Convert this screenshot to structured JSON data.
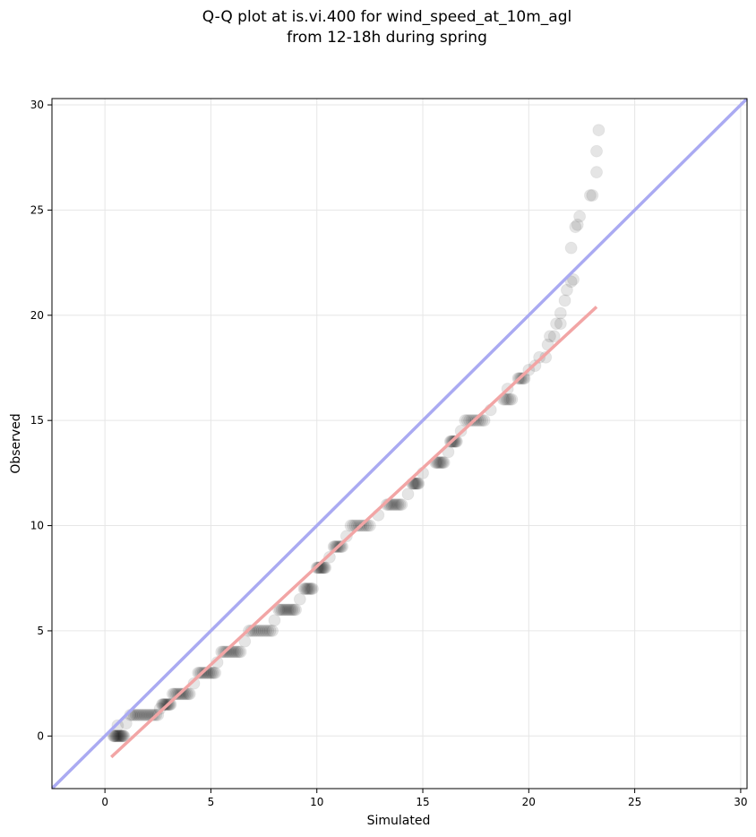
{
  "chart_data": {
    "type": "scatter",
    "title_lines": [
      "Q-Q plot at is.vi.400 for wind_speed_at_10m_agl",
      "from 12-18h during spring"
    ],
    "xlabel": "Simulated",
    "ylabel": "Observed",
    "xlim": [
      -2.5,
      30.3
    ],
    "ylim": [
      -2.5,
      30.3
    ],
    "xticks": [
      0,
      5,
      10,
      15,
      20,
      25,
      30
    ],
    "yticks": [
      0,
      5,
      10,
      15,
      20,
      25,
      30
    ],
    "grid": true,
    "legend": "none",
    "reference_line": {
      "name": "1:1",
      "x": [
        -2.5,
        30.3
      ],
      "y": [
        -2.5,
        30.3
      ],
      "color": "#aaaaf2"
    },
    "fit_line": {
      "x": [
        0.3,
        23.2
      ],
      "y": [
        -1.0,
        20.4
      ],
      "color": "#f2a5a5"
    },
    "point_color": "#000000",
    "steps": [
      [
        0.4,
        0.9,
        0,
        14
      ],
      [
        1.2,
        2.5,
        1,
        16
      ],
      [
        2.7,
        3.1,
        1.5,
        10
      ],
      [
        3.2,
        4.0,
        2,
        12
      ],
      [
        4.4,
        5.2,
        3,
        12
      ],
      [
        5.5,
        6.4,
        4,
        12
      ],
      [
        6.8,
        7.9,
        5,
        12
      ],
      [
        8.2,
        9.0,
        6,
        12
      ],
      [
        9.4,
        9.8,
        7,
        8
      ],
      [
        10.0,
        10.4,
        8,
        10
      ],
      [
        10.8,
        11.2,
        9,
        8
      ],
      [
        11.6,
        12.5,
        10,
        10
      ],
      [
        13.3,
        14.0,
        11,
        10
      ],
      [
        14.5,
        14.8,
        12,
        8
      ],
      [
        15.6,
        16.0,
        13,
        8
      ],
      [
        16.3,
        16.6,
        14,
        8
      ],
      [
        17.0,
        17.9,
        15,
        10
      ],
      [
        18.8,
        19.2,
        16,
        6
      ],
      [
        19.5,
        19.8,
        17,
        6
      ]
    ],
    "sparse_points": [
      [
        0.6,
        0.5
      ],
      [
        1.0,
        0.6
      ],
      [
        2.6,
        1.3
      ],
      [
        4.2,
        2.5
      ],
      [
        5.3,
        3.5
      ],
      [
        6.6,
        4.5
      ],
      [
        8.0,
        5.5
      ],
      [
        9.2,
        6.5
      ],
      [
        10.6,
        8.5
      ],
      [
        11.4,
        9.5
      ],
      [
        12.9,
        10.5
      ],
      [
        14.3,
        11.5
      ],
      [
        15.0,
        12.5
      ],
      [
        16.2,
        13.5
      ],
      [
        16.8,
        14.5
      ],
      [
        18.2,
        15.5
      ],
      [
        19.0,
        16.5
      ],
      [
        20.0,
        17.4
      ],
      [
        20.3,
        17.6
      ],
      [
        20.5,
        18.0
      ],
      [
        20.8,
        18.0
      ],
      [
        20.9,
        18.6
      ],
      [
        21.0,
        19.0
      ],
      [
        21.2,
        19.0
      ],
      [
        21.3,
        19.6
      ],
      [
        21.5,
        19.6
      ],
      [
        21.5,
        20.1
      ],
      [
        21.7,
        20.7
      ],
      [
        21.8,
        21.2
      ],
      [
        22.0,
        21.6
      ],
      [
        22.1,
        21.7
      ],
      [
        22.0,
        23.2
      ],
      [
        22.2,
        24.2
      ],
      [
        22.3,
        24.3
      ],
      [
        22.4,
        24.7
      ],
      [
        22.9,
        25.7
      ],
      [
        23.0,
        25.7
      ],
      [
        23.2,
        26.8
      ],
      [
        23.2,
        27.8
      ],
      [
        23.3,
        28.8
      ]
    ]
  }
}
